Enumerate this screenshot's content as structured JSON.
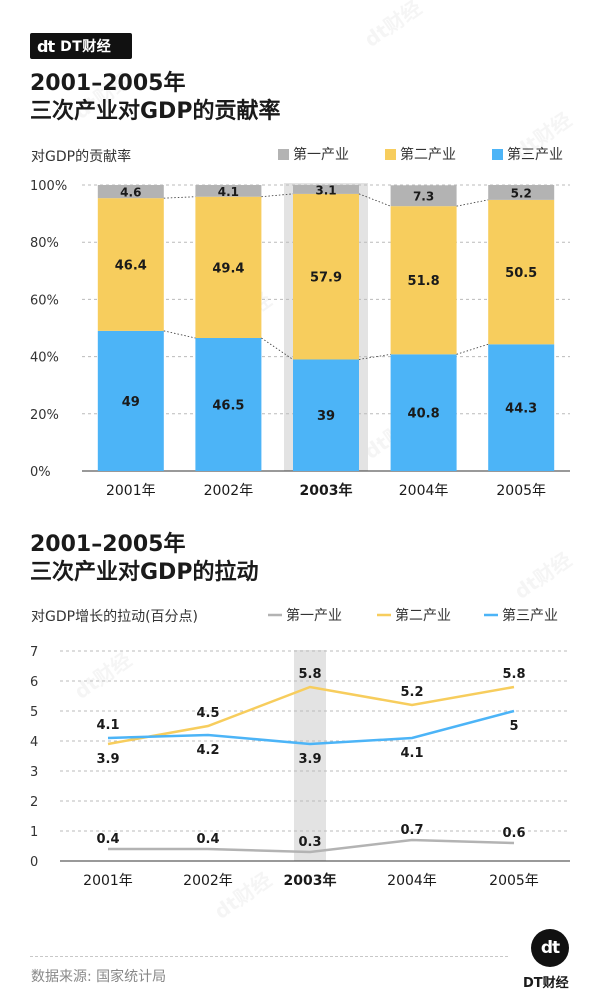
{
  "brand": {
    "logo": "dt",
    "name": "DT财经"
  },
  "watermark_text": "dt财经",
  "chart1_title": {
    "line1": "2001–2005年",
    "line2": "三次产业对GDP的贡献率"
  },
  "chart2_title": {
    "line1": "2001–2005年",
    "line2": "三次产业对GDP的拉动"
  },
  "source": "数据来源: 国家统计局",
  "footer_brand": "DT财经",
  "colors": {
    "primary": "#b3b3b3",
    "secondary": "#f7cd5d",
    "tertiary": "#4cb4f7",
    "highlight": "#e3e3e3"
  },
  "chart_data": [
    {
      "type": "bar",
      "stacked": true,
      "ylabel": "对GDP的贡献率",
      "categories": [
        "2001年",
        "2002年",
        "2003年",
        "2004年",
        "2005年"
      ],
      "highlight_category": "2003年",
      "ylim": [
        0,
        100
      ],
      "yticks": [
        "0%",
        "20%",
        "40%",
        "60%",
        "80%",
        "100%"
      ],
      "legend_position": "top-right",
      "series": [
        {
          "name": "第一产业",
          "values": [
            4.6,
            4.1,
            3.1,
            7.3,
            5.2
          ]
        },
        {
          "name": "第二产业",
          "values": [
            46.4,
            49.4,
            57.9,
            51.8,
            50.5
          ]
        },
        {
          "name": "第三产业",
          "values": [
            49,
            46.5,
            39,
            40.8,
            44.3
          ]
        }
      ]
    },
    {
      "type": "line",
      "ylabel": "对GDP增长的拉动(百分点)",
      "categories": [
        "2001年",
        "2002年",
        "2003年",
        "2004年",
        "2005年"
      ],
      "highlight_category": "2003年",
      "ylim": [
        0,
        7
      ],
      "yticks": [
        "0",
        "1",
        "2",
        "3",
        "4",
        "5",
        "6",
        "7"
      ],
      "legend_position": "top-right",
      "series": [
        {
          "name": "第一产业",
          "values": [
            0.4,
            0.4,
            0.3,
            0.7,
            0.6
          ]
        },
        {
          "name": "第二产业",
          "values": [
            3.9,
            4.5,
            5.8,
            5.2,
            5.8
          ]
        },
        {
          "name": "第三产业",
          "values": [
            4.1,
            4.2,
            3.9,
            4.1,
            5
          ]
        }
      ]
    }
  ]
}
